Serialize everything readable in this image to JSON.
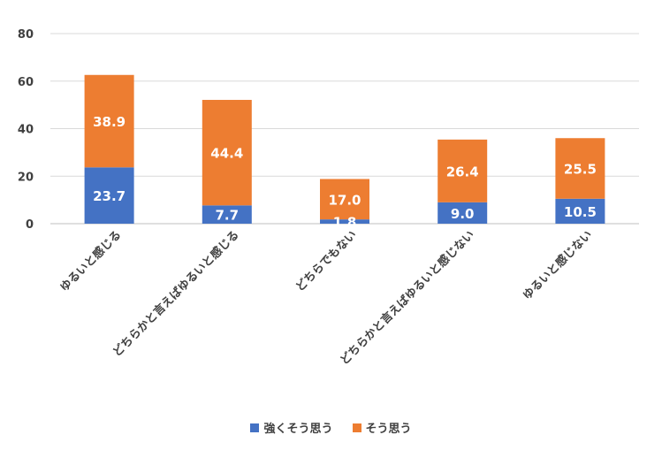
{
  "chart_data": {
    "type": "bar",
    "stacked": true,
    "categories": [
      "ゆるいと感じる",
      "どちらかと言えばゆるいと感じる",
      "どちらでもない",
      "どちらかと言えばゆるいと感じない",
      "ゆるいと感じない"
    ],
    "series": [
      {
        "name": "強くそう思う",
        "color": "#4472C4",
        "values": [
          23.7,
          7.7,
          1.8,
          9.0,
          10.5
        ],
        "labels": [
          "23.7",
          "7.7",
          "1.8",
          "9.0",
          "10.5"
        ]
      },
      {
        "name": "そう思う",
        "color": "#ED7D31",
        "values": [
          38.9,
          44.4,
          17.0,
          26.4,
          25.5
        ],
        "labels": [
          "38.9",
          "44.4",
          "17.0",
          "26.4",
          "25.5"
        ]
      }
    ],
    "ylim": [
      0,
      80
    ],
    "yticks": [
      "0",
      "20",
      "40",
      "60",
      "80"
    ],
    "grid": true,
    "legend": "bottom"
  }
}
